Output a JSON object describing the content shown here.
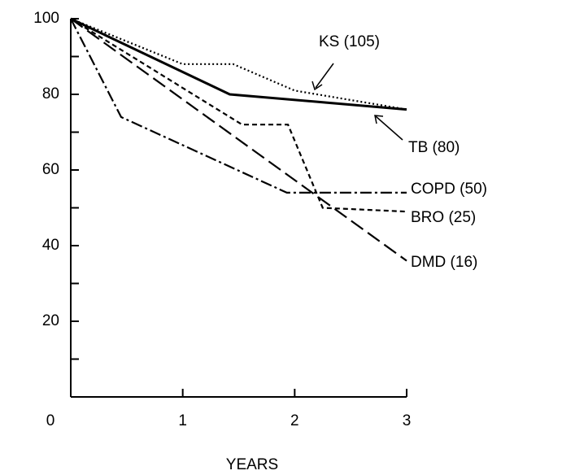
{
  "chart_data": {
    "type": "line",
    "x_label": "YEARS",
    "xlim": [
      0,
      3
    ],
    "xticks": [
      0,
      1,
      2,
      3
    ],
    "ylim": [
      0,
      100
    ],
    "yticks": [
      20,
      40,
      60,
      80,
      100
    ],
    "yticks_minor": [
      10,
      30,
      50,
      70,
      90
    ],
    "grid": false,
    "series": [
      {
        "name": "KS (105)",
        "color": "#000000",
        "line_style": "dotted",
        "x": [
          0,
          0.5,
          1,
          1.45,
          2,
          3
        ],
        "values": [
          100,
          94,
          88,
          88,
          81,
          76
        ]
      },
      {
        "name": "TB (80)",
        "color": "#000000",
        "line_style": "solid",
        "x": [
          0,
          1.42,
          3
        ],
        "values": [
          100,
          80,
          76
        ]
      },
      {
        "name": "COPD (50)",
        "color": "#000000",
        "line_style": "dashdot",
        "x": [
          0,
          0.45,
          1.93,
          3
        ],
        "values": [
          100,
          74,
          54,
          54
        ]
      },
      {
        "name": "BRO (25)",
        "color": "#000000",
        "line_style": "short-dash",
        "x": [
          0,
          1.53,
          1.94,
          2.25,
          3
        ],
        "values": [
          100,
          72,
          72,
          50,
          49
        ]
      },
      {
        "name": "DMD (16)",
        "color": "#000000",
        "line_style": "long-dash",
        "x": [
          0,
          3
        ],
        "values": [
          100,
          36
        ]
      }
    ]
  }
}
